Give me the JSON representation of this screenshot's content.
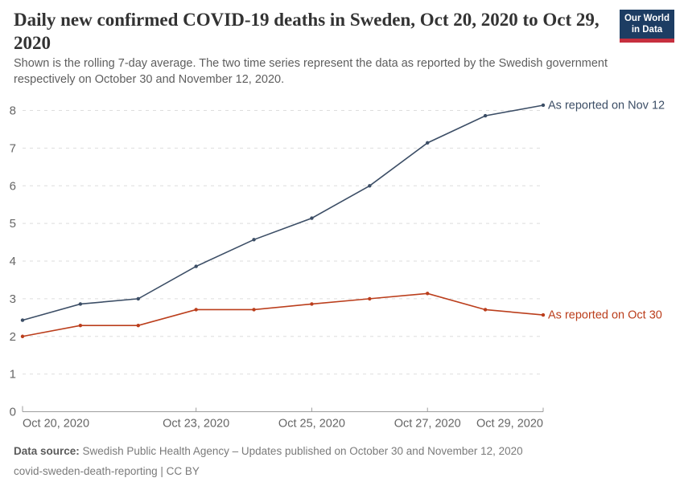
{
  "header": {
    "title": "Daily new confirmed COVID-19 deaths in Sweden, Oct 20, 2020 to Oct 29, 2020",
    "subtitle": "Shown is the rolling 7-day average. The two time series represent the data as reported by the Swedish government respectively on October 30 and November 12, 2020."
  },
  "logo": {
    "line1": "Our World",
    "line2": "in Data",
    "bg_color": "#1d3d63",
    "stripe_color": "#c62f3e",
    "text_color": "#ffffff"
  },
  "chart_data": {
    "type": "line",
    "title": "Daily new confirmed COVID-19 deaths in Sweden, Oct 20, 2020 to Oct 29, 2020",
    "x": [
      "Oct 20, 2020",
      "Oct 21, 2020",
      "Oct 22, 2020",
      "Oct 23, 2020",
      "Oct 24, 2020",
      "Oct 25, 2020",
      "Oct 26, 2020",
      "Oct 27, 2020",
      "Oct 28, 2020",
      "Oct 29, 2020"
    ],
    "series": [
      {
        "name": "As reported on Nov 12",
        "color": "#3C4E66",
        "values": [
          2.43,
          2.86,
          3.0,
          3.86,
          4.57,
          5.14,
          6.0,
          7.14,
          7.86,
          8.14
        ]
      },
      {
        "name": "As reported on Oct 30",
        "color": "#BB3E1C",
        "values": [
          2.0,
          2.29,
          2.29,
          2.71,
          2.71,
          2.86,
          3.0,
          3.14,
          2.71,
          2.57
        ]
      }
    ],
    "ylim": [
      0,
      8.5
    ],
    "yticks": [
      0,
      1,
      2,
      3,
      4,
      5,
      6,
      7,
      8
    ],
    "x_ticks": [
      {
        "index": 0,
        "label": "Oct 20, 2020",
        "anchor": "start"
      },
      {
        "index": 3,
        "label": "Oct 23, 2020",
        "anchor": "middle"
      },
      {
        "index": 5,
        "label": "Oct 25, 2020",
        "anchor": "middle"
      },
      {
        "index": 7,
        "label": "Oct 27, 2020",
        "anchor": "middle"
      },
      {
        "index": 9,
        "label": "Oct 29, 2020",
        "anchor": "end"
      }
    ],
    "xlabel": "",
    "ylabel": "",
    "grid": "horizontal-dashed",
    "legend_position": "line-end-labels"
  },
  "footer": {
    "source_label": "Data source:",
    "source_text": "Swedish Public Health Agency – Updates published on October 30 and November 12, 2020",
    "line2": "covid-sweden-death-reporting | CC BY"
  },
  "colors": {
    "axis_text": "#666666",
    "gridline": "#dedede",
    "axis_line": "#9e9e9e",
    "title": "#333333",
    "subtitle": "#5e5e5e",
    "footer": "#7a7a7a"
  }
}
